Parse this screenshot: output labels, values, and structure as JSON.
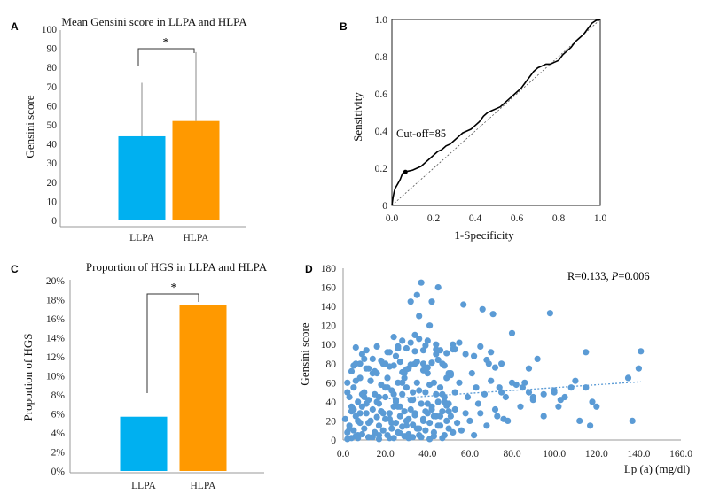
{
  "colors": {
    "llpa": "#00B0F0",
    "hlpa": "#FF9900",
    "scatter": "#5B9BD5",
    "line": "#000000"
  },
  "chart_data": [
    {
      "id": "A",
      "panel_label": "A",
      "type": "bar",
      "title": "Mean Gensini score in LLPA and HLPA",
      "ylabel": "Gensini score",
      "xlabel": "",
      "categories": [
        "LLPA",
        "HLPA"
      ],
      "values": [
        44,
        52
      ],
      "error_upper": [
        72,
        88
      ],
      "ylim": [
        0,
        100
      ],
      "yticks": [
        "0",
        "10",
        "20",
        "30",
        "40",
        "50",
        "60",
        "70",
        "80",
        "90",
        "100"
      ],
      "significance": "*",
      "grid": false
    },
    {
      "id": "B",
      "panel_label": "B",
      "type": "line",
      "title": "",
      "xlabel": "1-Specificity",
      "ylabel": "Sensitivity",
      "xlim": [
        0,
        1
      ],
      "ylim": [
        0,
        1
      ],
      "xticks": [
        "0.0",
        "0.2",
        "0.4",
        "0.6",
        "0.8",
        "1.0"
      ],
      "yticks": [
        "0",
        "0.2",
        "0.4",
        "0.6",
        "0.8",
        "1.0"
      ],
      "annotation": "Cut-off=85",
      "cutoff_point": [
        0.065,
        0.18
      ],
      "reference_line": true,
      "grid": false,
      "series": [
        {
          "x": [
            0,
            0.005,
            0.01,
            0.015,
            0.02,
            0.03,
            0.04,
            0.05,
            0.06,
            0.08,
            0.1,
            0.12,
            0.14,
            0.16,
            0.18,
            0.2,
            0.22,
            0.24,
            0.26,
            0.28,
            0.3,
            0.32,
            0.34,
            0.36,
            0.38,
            0.4,
            0.42,
            0.44,
            0.46,
            0.48,
            0.5,
            0.52,
            0.54,
            0.56,
            0.58,
            0.6,
            0.62,
            0.64,
            0.66,
            0.68,
            0.7,
            0.72,
            0.74,
            0.76,
            0.78,
            0.8,
            0.82,
            0.84,
            0.86,
            0.88,
            0.9,
            0.92,
            0.94,
            0.96,
            0.98,
            1.0
          ],
          "y": [
            0,
            0.04,
            0.07,
            0.09,
            0.1,
            0.12,
            0.14,
            0.17,
            0.18,
            0.185,
            0.19,
            0.2,
            0.21,
            0.23,
            0.25,
            0.27,
            0.29,
            0.3,
            0.32,
            0.33,
            0.35,
            0.37,
            0.39,
            0.4,
            0.41,
            0.43,
            0.45,
            0.48,
            0.5,
            0.51,
            0.52,
            0.53,
            0.55,
            0.57,
            0.59,
            0.61,
            0.63,
            0.66,
            0.69,
            0.72,
            0.74,
            0.75,
            0.76,
            0.76,
            0.77,
            0.78,
            0.81,
            0.83,
            0.85,
            0.88,
            0.9,
            0.92,
            0.95,
            0.98,
            0.995,
            1.0
          ]
        }
      ]
    },
    {
      "id": "C",
      "panel_label": "C",
      "type": "bar",
      "title": "Proportion of HGS in LLPA and HLPA",
      "ylabel": "Proportion of HGS",
      "xlabel": "",
      "categories": [
        "LLPA",
        "HLPA"
      ],
      "values": [
        5.7,
        17.4
      ],
      "ylim": [
        0,
        20
      ],
      "yticks": [
        "0%",
        "2%",
        "4%",
        "6%",
        "8%",
        "10%",
        "12%",
        "14%",
        "16%",
        "18%",
        "20%"
      ],
      "significance": "*",
      "grid": false
    },
    {
      "id": "D",
      "panel_label": "D",
      "type": "scatter",
      "title": "",
      "xlabel": "Lp (a) (mg/dl)",
      "ylabel": "Gensini score",
      "xlim": [
        0,
        160
      ],
      "ylim": [
        0,
        180
      ],
      "xticks": [
        "0.0",
        "20.0",
        "40.0",
        "60.0",
        "80.0",
        "100.0",
        "120.0",
        "140.0",
        "160.0"
      ],
      "yticks": [
        "0",
        "20",
        "40",
        "60",
        "80",
        "100",
        "120",
        "140",
        "160",
        "180"
      ],
      "annotation_r": "R=0.133, ",
      "annotation_p_label": "P",
      "annotation_p_value": "=0.006",
      "trendline": {
        "x": [
          20,
          141
        ],
        "y": [
          43,
          61
        ]
      },
      "grid": false,
      "points": {
        "x": [
          1,
          2,
          2,
          3,
          3,
          4,
          4,
          5,
          5,
          6,
          6,
          7,
          7,
          8,
          8,
          9,
          9,
          10,
          10,
          11,
          11,
          12,
          12,
          13,
          13,
          14,
          14,
          15,
          15,
          16,
          16,
          17,
          17,
          18,
          18,
          19,
          19,
          20,
          20,
          21,
          21,
          22,
          22,
          23,
          23,
          24,
          24,
          25,
          25,
          26,
          26,
          27,
          27,
          28,
          28,
          29,
          29,
          30,
          30,
          31,
          31,
          32,
          32,
          33,
          33,
          34,
          34,
          35,
          35,
          36,
          36,
          37,
          37,
          38,
          38,
          39,
          39,
          40,
          40,
          41,
          41,
          42,
          42,
          43,
          43,
          44,
          44,
          45,
          45,
          46,
          46,
          47,
          47,
          48,
          48,
          49,
          49,
          50,
          50,
          51,
          51,
          52,
          52,
          53,
          53,
          54,
          55,
          56,
          57,
          58,
          59,
          60,
          61,
          62,
          63,
          64,
          65,
          66,
          67,
          68,
          69,
          70,
          71,
          72,
          73,
          74,
          75,
          76,
          77,
          78,
          80,
          82,
          84,
          86,
          88,
          90,
          92,
          95,
          98,
          100,
          102,
          105,
          108,
          112,
          115,
          117,
          120,
          135,
          137,
          140,
          141,
          2,
          4,
          6,
          8,
          10,
          12,
          14,
          16,
          18,
          20,
          22,
          24,
          26,
          28,
          30,
          32,
          34,
          36,
          38,
          40,
          42,
          44,
          46,
          48,
          50,
          3,
          5,
          7,
          9,
          11,
          13,
          15,
          17,
          19,
          21,
          23,
          25,
          27,
          29,
          31,
          33,
          35,
          37,
          39,
          41,
          43,
          45,
          47,
          49,
          51,
          5,
          10,
          15,
          20,
          25,
          30,
          35,
          40,
          45,
          50,
          8,
          12,
          18,
          22,
          28,
          32,
          38,
          42,
          48,
          52,
          24,
          26,
          28,
          30,
          32,
          34,
          36,
          38,
          40,
          44,
          46,
          55,
          58,
          62,
          65,
          68,
          70,
          72,
          75,
          80,
          85,
          88,
          90,
          95,
          100,
          103,
          110,
          115,
          118,
          4,
          6,
          9,
          14,
          17,
          22,
          27,
          33,
          36,
          43,
          2,
          7,
          12,
          17,
          24,
          29,
          31,
          37,
          41,
          47,
          6,
          11,
          16,
          21,
          26,
          34,
          39,
          44,
          49,
          53
        ],
        "y": [
          22,
          8,
          60,
          15,
          45,
          30,
          72,
          10,
          55,
          25,
          80,
          5,
          40,
          18,
          65,
          35,
          90,
          12,
          50,
          28,
          75,
          3,
          42,
          20,
          62,
          32,
          85,
          8,
          48,
          24,
          70,
          15,
          38,
          30,
          58,
          10,
          80,
          22,
          45,
          5,
          65,
          28,
          92,
          12,
          52,
          35,
          78,
          18,
          40,
          8,
          60,
          25,
          82,
          14,
          48,
          30,
          70,
          20,
          55,
          6,
          75,
          32,
          145,
          16,
          42,
          26,
          80,
          152,
          60,
          12,
          130,
          38,
          165,
          22,
          80,
          10,
          50,
          28,
          70,
          18,
          120,
          35,
          145,
          8,
          60,
          25,
          90,
          160,
          40,
          15,
          55,
          30,
          80,
          5,
          45,
          20,
          65,
          12,
          38,
          25,
          70,
          8,
          95,
          32,
          50,
          18,
          60,
          10,
          142,
          28,
          45,
          20,
          70,
          5,
          55,
          38,
          28,
          137,
          48,
          15,
          80,
          62,
          132,
          32,
          25,
          55,
          50,
          22,
          45,
          20,
          112,
          58,
          35,
          60,
          75,
          42,
          85,
          25,
          133,
          50,
          35,
          45,
          55,
          20,
          92,
          15,
          35,
          65,
          20,
          75,
          93,
          50,
          35,
          62,
          28,
          45,
          18,
          70,
          40,
          30,
          55,
          22,
          48,
          35,
          60,
          15,
          42,
          28,
          52,
          20,
          38,
          32,
          48,
          25,
          40,
          30,
          12,
          32,
          20,
          48,
          38,
          62,
          8,
          45,
          28,
          55,
          18,
          42,
          35,
          65,
          22,
          50,
          12,
          38,
          30,
          58,
          25,
          15,
          48,
          36,
          68,
          78,
          85,
          72,
          80,
          88,
          74,
          82,
          76,
          84,
          70,
          80,
          75,
          83,
          77,
          71,
          79,
          73,
          81,
          78,
          100,
          108,
          98,
          104,
          96,
          102,
          110,
          106,
          94,
          104,
          100,
          94,
          102,
          90,
          88,
          98,
          84,
          92,
          76,
          80,
          60,
          55,
          50,
          45,
          48,
          52,
          42,
          62,
          55,
          40,
          2,
          4,
          6,
          3,
          5,
          2,
          7,
          3,
          5,
          4,
          1,
          2,
          3,
          1,
          2,
          4,
          2,
          3,
          1,
          2,
          97,
          94,
          98,
          92,
          96,
          93,
          99,
          95,
          91,
          95
        ]
      }
    }
  ]
}
